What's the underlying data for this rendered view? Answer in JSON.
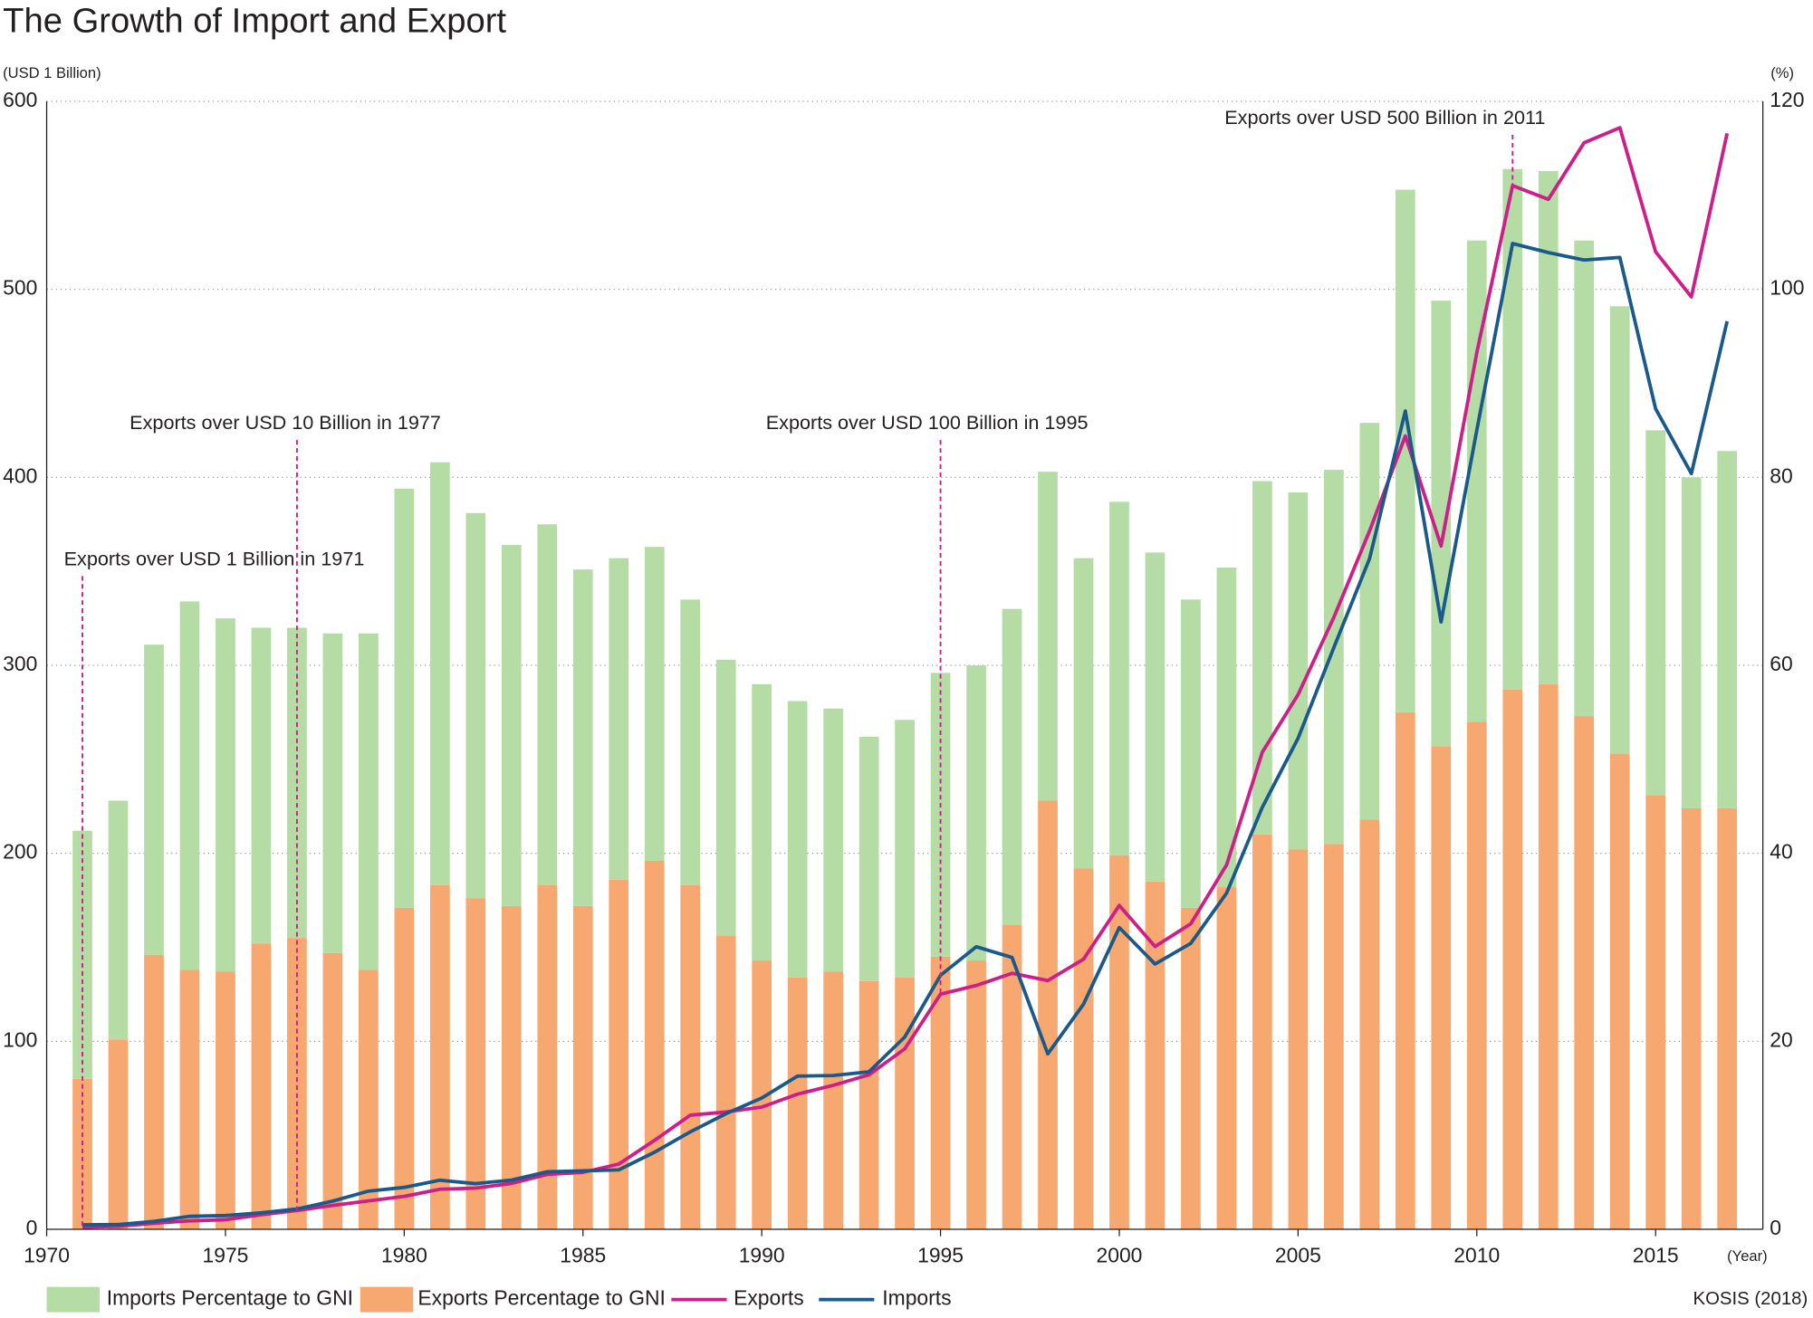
{
  "chart_data": {
    "type": "bar",
    "title": "The Growth of Import and Export",
    "y_label": "(USD 1 Billion)",
    "y2_label": "(%)",
    "x_label": "(Year)",
    "source": "KOSIS (2018)",
    "x": [
      1971,
      1972,
      1973,
      1974,
      1975,
      1976,
      1977,
      1978,
      1979,
      1980,
      1981,
      1982,
      1983,
      1984,
      1985,
      1986,
      1987,
      1988,
      1989,
      1990,
      1991,
      1992,
      1993,
      1994,
      1995,
      1996,
      1997,
      1998,
      1999,
      2000,
      2001,
      2002,
      2003,
      2004,
      2005,
      2006,
      2007,
      2008,
      2009,
      2010,
      2011,
      2012,
      2013,
      2014,
      2015,
      2016,
      2017
    ],
    "xlim": [
      1970,
      2018
    ],
    "xticks": [
      1970,
      1975,
      1980,
      1985,
      1990,
      1995,
      2000,
      2005,
      2010,
      2015
    ],
    "ylim": [
      0,
      600
    ],
    "yticks": [
      0,
      100,
      200,
      300,
      400,
      500,
      600
    ],
    "y2lim": [
      0,
      120
    ],
    "y2ticks": [
      0,
      20,
      40,
      60,
      80,
      100,
      120
    ],
    "grid": true,
    "series": [
      {
        "name": "Exports Percentage to GNI",
        "type": "bar",
        "axis": "y2",
        "color": "#f6a870",
        "values": [
          16.0,
          20.2,
          29.2,
          27.6,
          27.4,
          30.4,
          31.0,
          29.4,
          27.6,
          34.2,
          36.6,
          35.2,
          34.4,
          36.6,
          34.4,
          37.2,
          39.2,
          36.6,
          31.2,
          28.6,
          26.8,
          27.4,
          26.4,
          26.8,
          29.0,
          28.6,
          32.4,
          45.6,
          38.4,
          39.8,
          37.0,
          34.2,
          36.4,
          42.0,
          40.4,
          41.0,
          43.6,
          55.0,
          51.4,
          54.0,
          57.4,
          58.0,
          54.6,
          50.6,
          46.2,
          44.8,
          44.8
        ]
      },
      {
        "name": "Imports Percentage to GNI",
        "type": "bar",
        "axis": "y2",
        "color": "#b5dca5",
        "values": [
          26.4,
          25.4,
          33.0,
          39.2,
          37.6,
          33.6,
          33.0,
          34.0,
          35.8,
          44.6,
          45.0,
          41.0,
          38.4,
          38.4,
          35.8,
          34.2,
          33.4,
          30.4,
          29.4,
          29.4,
          29.4,
          28.0,
          26.0,
          27.4,
          30.2,
          31.4,
          33.6,
          35.0,
          33.0,
          37.6,
          35.0,
          32.8,
          34.0,
          37.6,
          38.0,
          39.8,
          42.2,
          55.6,
          47.4,
          51.2,
          55.4,
          54.6,
          50.6,
          47.6,
          38.8,
          35.2,
          38.0
        ]
      },
      {
        "name": "Exports",
        "type": "line",
        "color": "#cc1f8a",
        "values": [
          1.1,
          1.6,
          3.2,
          4.5,
          5.1,
          7.7,
          10.0,
          12.7,
          15.1,
          17.5,
          21.3,
          21.9,
          24.4,
          29.2,
          30.3,
          34.7,
          47.3,
          60.7,
          62.4,
          65.0,
          71.9,
          76.6,
          82.2,
          96.0,
          125.1,
          129.7,
          136.2,
          132.3,
          143.7,
          172.3,
          150.4,
          162.5,
          193.8,
          253.8,
          284.4,
          325.5,
          371.5,
          422.0,
          363.5,
          466.4,
          555.2,
          547.9,
          578.0,
          586.0,
          520.0,
          496.0,
          583.0
        ]
      },
      {
        "name": "Imports",
        "type": "line",
        "color": "#1a5a8a",
        "values": [
          2.4,
          2.5,
          4.2,
          6.9,
          7.3,
          8.8,
          10.8,
          15.0,
          20.3,
          22.3,
          26.1,
          24.3,
          26.2,
          30.6,
          31.1,
          31.6,
          41.0,
          51.8,
          61.5,
          69.8,
          81.5,
          81.8,
          83.8,
          102.3,
          135.1,
          150.3,
          144.6,
          93.3,
          119.8,
          160.5,
          141.1,
          152.1,
          178.8,
          224.5,
          261.2,
          309.4,
          356.8,
          435.3,
          323.1,
          425.2,
          524.4,
          519.6,
          515.6,
          517.0,
          436.5,
          402.0,
          483.0
        ]
      }
    ],
    "annotations": [
      {
        "x": 1971,
        "text": "Exports over USD 1 Billion in 1971"
      },
      {
        "x": 1977,
        "text": "Exports over USD 10 Billion in 1977"
      },
      {
        "x": 1995,
        "text": "Exports over USD 100 Billion in 1995"
      },
      {
        "x": 2011,
        "text": "Exports over USD 500 Billion in 2011"
      }
    ]
  }
}
